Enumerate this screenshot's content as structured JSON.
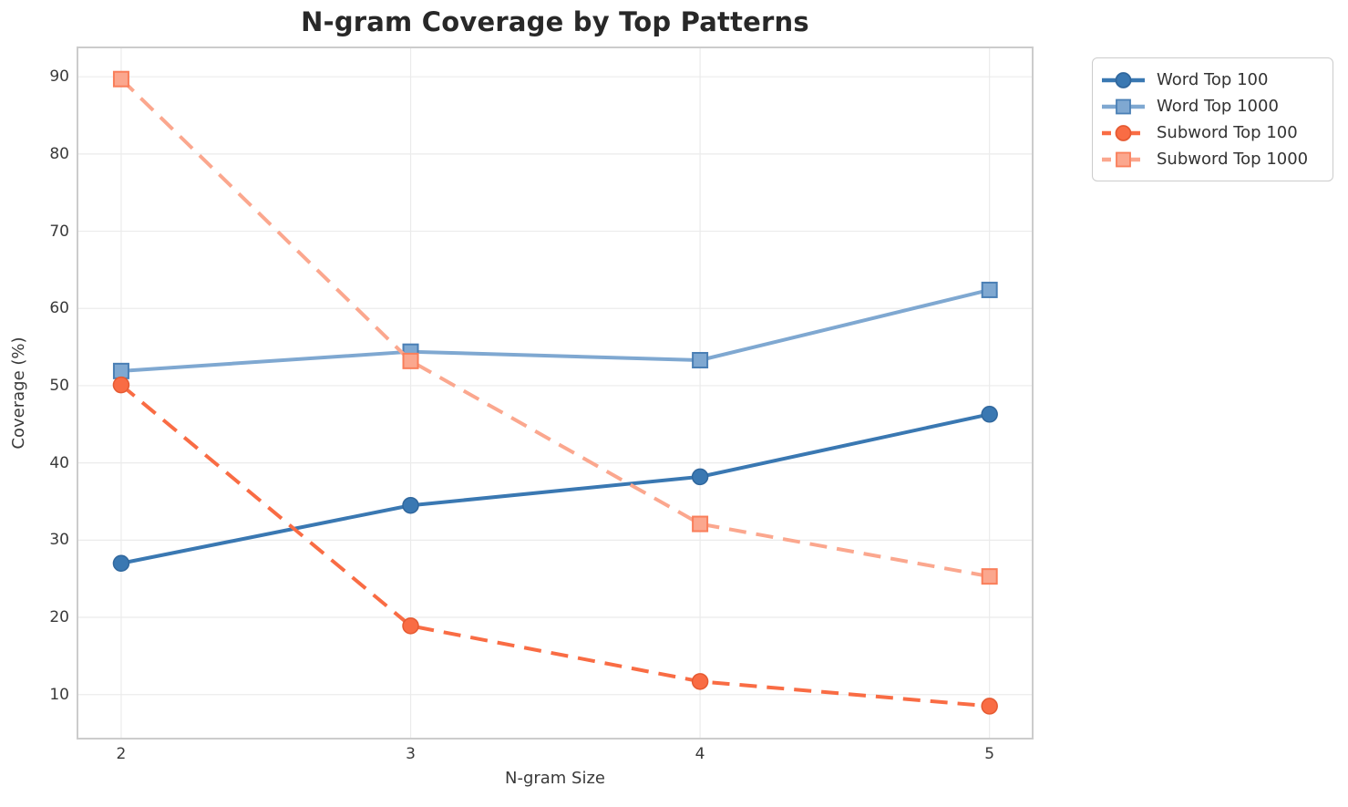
{
  "figure": {
    "title": "N-gram Coverage by Top Patterns",
    "xlabel": "N-gram Size",
    "ylabel": "Coverage (%)"
  },
  "chart_data": {
    "type": "line",
    "title": "N-gram Coverage by Top Patterns",
    "xlabel": "N-gram Size",
    "ylabel": "Coverage (%)",
    "x": [
      2,
      3,
      4,
      5
    ],
    "xtick_labels": [
      "2",
      "3",
      "4",
      "5"
    ],
    "yticks": [
      10,
      20,
      30,
      40,
      50,
      60,
      70,
      80,
      90
    ],
    "xlim": [
      1.849,
      5.149
    ],
    "ylim": [
      4.3,
      93.8
    ],
    "grid": true,
    "grid_color": "#ebebeb",
    "spine_color": "#cccccc",
    "legend_position": "outside-upper-right",
    "series": [
      {
        "name": "Word Top 100",
        "values": [
          27.0,
          34.5,
          38.2,
          46.3
        ],
        "color": "#3a78b2",
        "edge_color": "#30679d",
        "marker": "circle",
        "line_style": "solid"
      },
      {
        "name": "Word Top 1000",
        "values": [
          51.9,
          54.4,
          53.3,
          62.4
        ],
        "color": "#7fa8d1",
        "edge_color": "#4a7fb5",
        "marker": "square",
        "line_style": "solid"
      },
      {
        "name": "Subword Top 100",
        "values": [
          50.1,
          18.9,
          11.7,
          8.5
        ],
        "color": "#f96c44",
        "edge_color": "#e55a32",
        "marker": "circle",
        "line_style": "dashed"
      },
      {
        "name": "Subword Top 1000",
        "values": [
          89.7,
          53.2,
          32.1,
          25.3
        ],
        "color": "#fba78e",
        "edge_color": "#f97e5a",
        "marker": "square",
        "line_style": "dashed"
      }
    ]
  }
}
